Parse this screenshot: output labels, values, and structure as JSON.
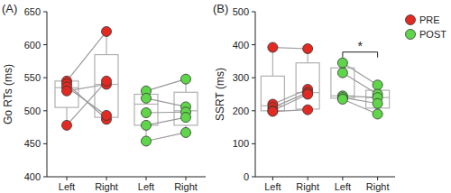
{
  "chart_data": [
    {
      "type": "box",
      "title": "(A)",
      "y_label": "Go RTs (ms)",
      "categories": [
        "Left",
        "Right",
        "Left",
        "Right"
      ],
      "ylim": [
        400,
        650
      ],
      "yticks": [
        400,
        450,
        500,
        550,
        600,
        650
      ],
      "boxes": [
        {
          "min": 478,
          "q1": 505,
          "median": 535,
          "q3": 545,
          "max": 545
        },
        {
          "min": 487,
          "q1": 490,
          "median": 540,
          "q3": 585,
          "max": 620
        },
        {
          "min": 454,
          "q1": 478,
          "median": 510,
          "q3": 525,
          "max": 530
        },
        {
          "min": 467,
          "q1": 478,
          "median": 500,
          "q3": 528,
          "max": 548
        }
      ],
      "series": [
        {
          "name": "PRE",
          "color": "#e32a22",
          "values": [
            [
              545,
              541,
              536,
              530,
              478
            ],
            [
              620,
              487,
              493,
              540,
              545
            ],
            null,
            null
          ]
        },
        {
          "name": "POST",
          "color": "#5fd64a",
          "values": [
            null,
            null,
            [
              530,
              519,
              497,
              478,
              454
            ],
            [
              548,
              506,
              498,
              490,
              467
            ]
          ]
        }
      ]
    },
    {
      "type": "box",
      "title": "(B)",
      "y_label": "SSRT (ms)",
      "categories": [
        "Left",
        "Right",
        "Left",
        "Right"
      ],
      "ylim": [
        0,
        500
      ],
      "yticks": [
        0,
        100,
        200,
        300,
        400,
        500
      ],
      "legend": "right",
      "boxes": [
        {
          "min": 198,
          "q1": 200,
          "median": 215,
          "q3": 305,
          "max": 392
        },
        {
          "min": 203,
          "q1": 205,
          "median": 255,
          "q3": 345,
          "max": 388
        },
        {
          "min": 235,
          "q1": 238,
          "median": 245,
          "q3": 330,
          "max": 345
        },
        {
          "min": 190,
          "q1": 208,
          "median": 240,
          "q3": 262,
          "max": 278
        }
      ],
      "series": [
        {
          "name": "PRE",
          "color": "#e32a22",
          "values": [
            [
              392,
              220,
              210,
              200,
              198
            ],
            [
              388,
              265,
              255,
              250,
              203
            ],
            null,
            null
          ]
        },
        {
          "name": "POST",
          "color": "#5fd64a",
          "values": [
            null,
            null,
            [
              345,
              315,
              245,
              240,
              235
            ],
            [
              278,
              250,
              240,
              222,
              190
            ]
          ]
        }
      ],
      "annotations": [
        {
          "text": "*",
          "from": 2,
          "to": 3
        }
      ]
    }
  ]
}
